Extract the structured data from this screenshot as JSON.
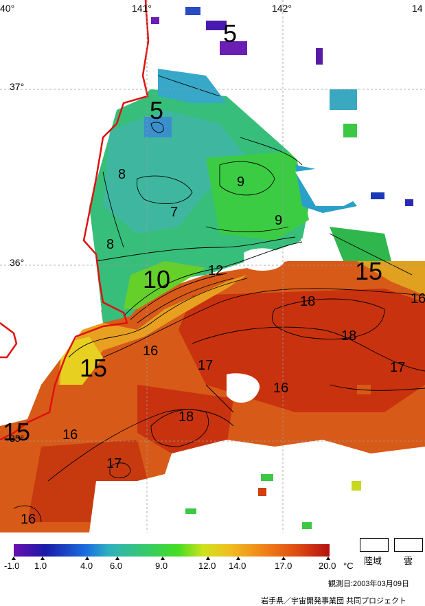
{
  "map": {
    "lon_labels": [
      "40°",
      "141°",
      "142°",
      "14"
    ],
    "lat_labels": [
      "37°",
      "36°",
      "35°"
    ],
    "isotherm_labels": [
      "5",
      "5",
      "8",
      "7",
      "8",
      "9",
      "9",
      "10",
      "12",
      "15",
      "16",
      "18",
      "18",
      "16",
      "15",
      "17",
      "17",
      "16",
      "16",
      "18",
      "15",
      "16",
      "17",
      "16"
    ]
  },
  "legend": {
    "ticks": [
      "-1.0",
      "1.0",
      "4.0",
      "6.0",
      "9.0",
      "12.0",
      "14.0",
      "17.0",
      "20.0"
    ],
    "unit": "°C",
    "land_label": "陸域",
    "cloud_label": "雲",
    "colors": [
      "#6a0fb0",
      "#1a1aa8",
      "#1a6ee0",
      "#2fb0c0",
      "#34c870",
      "#44dd22",
      "#cfe21c",
      "#f0c020",
      "#f07e18",
      "#dd4a10",
      "#b41010"
    ]
  },
  "footer": {
    "date": "観測日:2003年03月09日",
    "credit": "岩手県／宇宙開発事業団 共同プロジェクト"
  }
}
